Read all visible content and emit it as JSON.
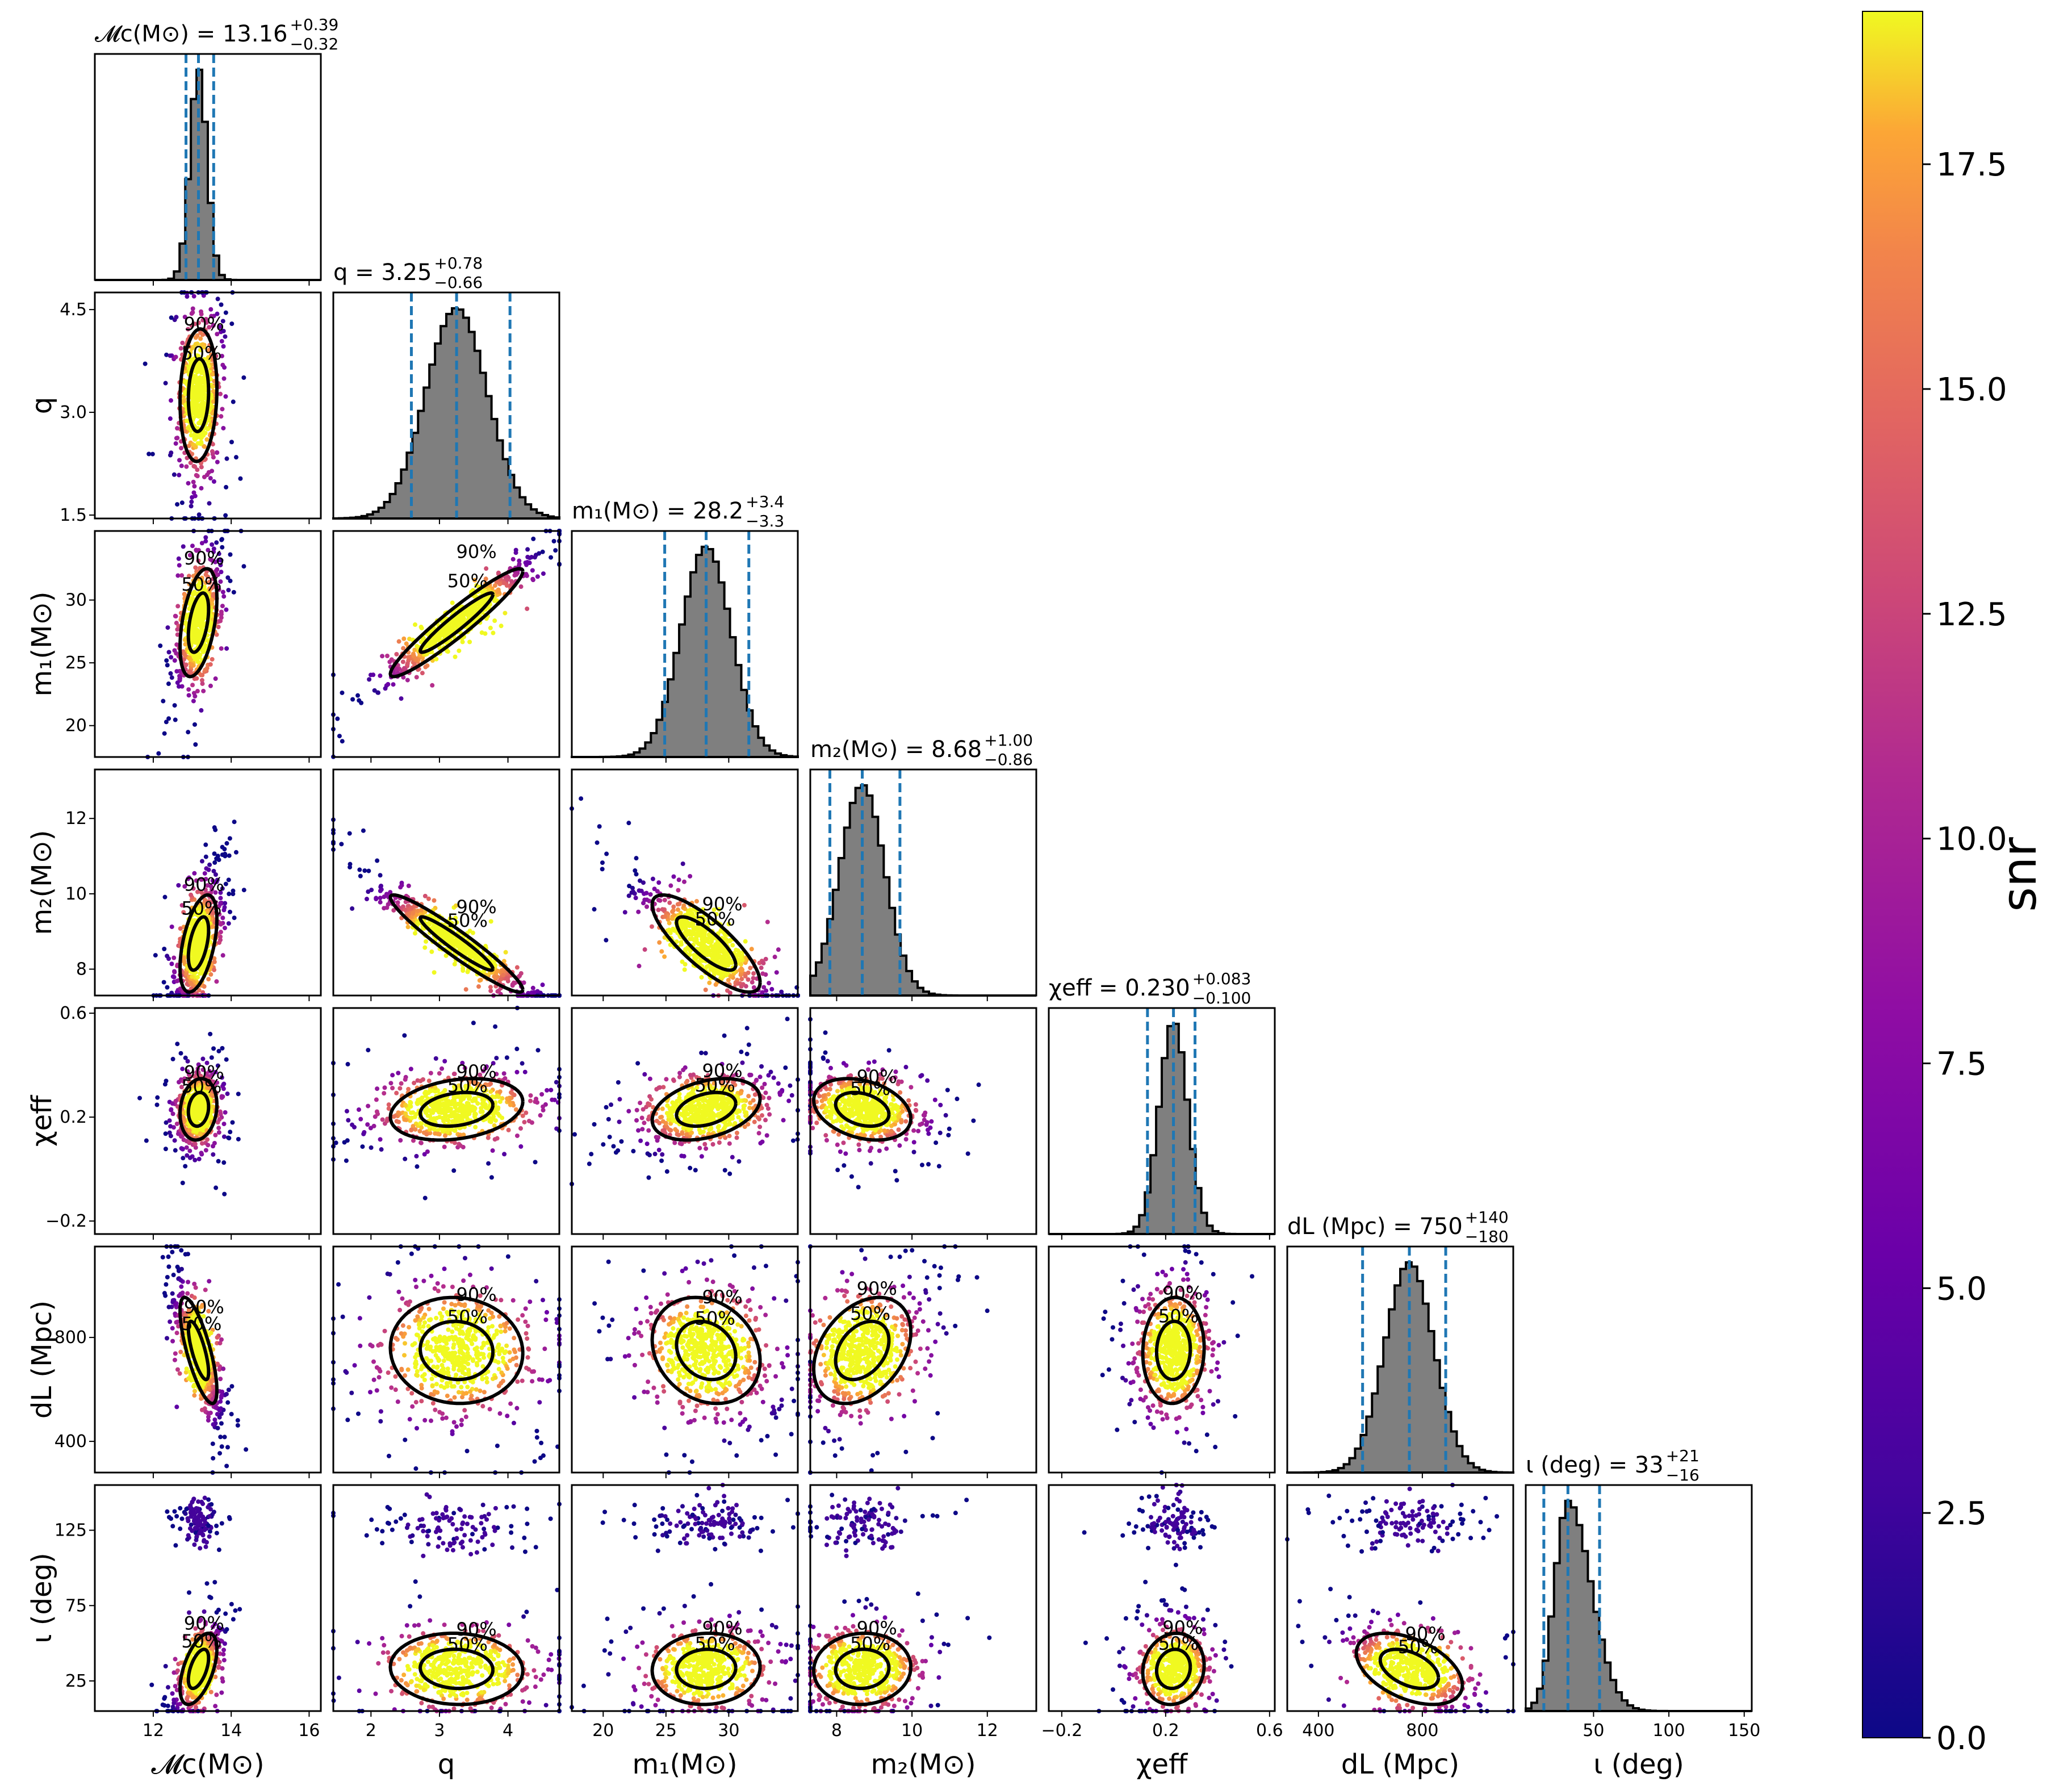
{
  "chart_data": {
    "type": "corner",
    "description_colorbar": {
      "label": "snr",
      "range": [
        0.0,
        19.2
      ],
      "ticks": [
        "0.0",
        "2.5",
        "5.0",
        "7.5",
        "10.0",
        "12.5",
        "15.0",
        "17.5"
      ],
      "colormap": [
        "#0d0887",
        "#6a00a8",
        "#b12a90",
        "#e16462",
        "#fca636",
        "#f0f921"
      ]
    },
    "params": [
      {
        "key": "Mc",
        "title": "M_c(M_⊙) = 13.16 +0.39 −0.32",
        "title_main": "𝓜c(M⊙) = 13.16",
        "title_plus": "+0.39",
        "title_minus": "−0.32",
        "label": "𝓜c(M⊙)",
        "range": [
          10.5,
          16.3
        ],
        "median": 13.16,
        "lo": 12.84,
        "hi": 13.55,
        "sd": 0.22,
        "ticks": [
          12,
          14,
          16
        ],
        "tick_labels": [
          "12",
          "14",
          "16"
        ]
      },
      {
        "key": "q",
        "title_main": "q = 3.25",
        "title_plus": "+0.78",
        "title_minus": "−0.66",
        "label": "q",
        "range": [
          1.45,
          4.75
        ],
        "median": 3.25,
        "lo": 2.59,
        "hi": 4.03,
        "sd": 0.45,
        "ticks": [
          2,
          3,
          4
        ],
        "tick_labels": [
          "2",
          "3",
          "4"
        ],
        "y_ticks": [
          1.5,
          3.0,
          4.5
        ],
        "y_tick_labels": [
          "1.5",
          "3.0",
          "4.5"
        ]
      },
      {
        "key": "m1",
        "title_main": "m₁(M⊙) = 28.2",
        "title_plus": "+3.4",
        "title_minus": "−3.3",
        "label": "m₁(M⊙)",
        "range": [
          17.5,
          35.5
        ],
        "median": 28.2,
        "lo": 24.9,
        "hi": 31.6,
        "sd": 2.0,
        "ticks": [
          20,
          25,
          30
        ],
        "tick_labels": [
          "20",
          "25",
          "30"
        ]
      },
      {
        "key": "m2",
        "title_main": "m₂(M⊙) = 8.68",
        "title_plus": "+1.00",
        "title_minus": "−0.86",
        "label": "m₂(M⊙)",
        "range": [
          7.3,
          13.3
        ],
        "median": 8.68,
        "lo": 7.82,
        "hi": 9.68,
        "sd": 0.6,
        "ticks": [
          8,
          10,
          12
        ],
        "tick_labels": [
          "8",
          "10",
          "12"
        ]
      },
      {
        "key": "chi",
        "title_main": "χeff = 0.230",
        "title_plus": "+0.083",
        "title_minus": "−0.100",
        "label": "χeff",
        "range": [
          -0.25,
          0.62
        ],
        "median": 0.23,
        "lo": 0.13,
        "hi": 0.313,
        "sd": 0.055,
        "ticks": [
          -0.2,
          0.2,
          0.6
        ],
        "tick_labels": [
          "−0.2",
          "0.2",
          "0.6"
        ]
      },
      {
        "key": "dL",
        "title_main": "dL (Mpc) = 750",
        "title_plus": "+140",
        "title_minus": "−180",
        "label": "dL (Mpc)",
        "range": [
          280,
          1150
        ],
        "median": 750,
        "lo": 570,
        "hi": 890,
        "sd": 95,
        "ticks": [
          400,
          800
        ],
        "tick_labels": [
          "400",
          "800"
        ]
      },
      {
        "key": "iota",
        "title_main": "ι (deg) = 33",
        "title_plus": "+21",
        "title_minus": "−16",
        "label": "ι (deg)",
        "range": [
          5,
          155
        ],
        "median": 33,
        "lo": 17,
        "hi": 54,
        "sd": 11,
        "ticks": [
          25,
          75,
          125
        ],
        "tick_labels": [
          "25",
          "75",
          "125"
        ],
        "x_ticks": [
          50,
          100,
          150
        ],
        "x_tick_labels": [
          "50",
          "100",
          "150"
        ]
      }
    ],
    "contour_labels": [
      "50%",
      "90%"
    ]
  }
}
